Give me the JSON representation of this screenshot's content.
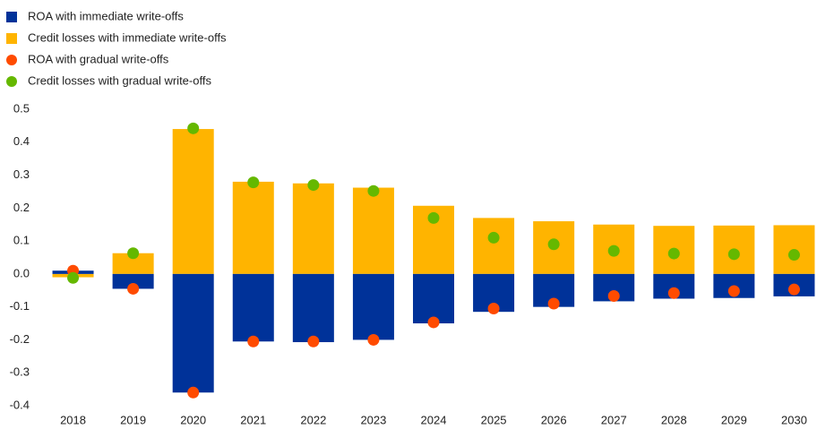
{
  "chart_data": {
    "type": "bar",
    "categories": [
      "2018",
      "2019",
      "2020",
      "2021",
      "2022",
      "2023",
      "2024",
      "2025",
      "2026",
      "2027",
      "2028",
      "2029",
      "2030"
    ],
    "series": [
      {
        "name": "ROA with immediate write-offs",
        "color": "#003299",
        "kind": "bar",
        "values": [
          0.01,
          -0.045,
          -0.36,
          -0.205,
          -0.207,
          -0.2,
          -0.15,
          -0.115,
          -0.1,
          -0.083,
          -0.075,
          -0.073,
          -0.068
        ]
      },
      {
        "name": "Credit losses with immediate write-offs",
        "color": "#ffb400",
        "kind": "bar",
        "values": [
          -0.01,
          0.063,
          0.44,
          0.28,
          0.275,
          0.262,
          0.207,
          0.17,
          0.16,
          0.15,
          0.146,
          0.147,
          0.148
        ]
      },
      {
        "name": "ROA with gradual write-offs",
        "color": "#ff4b00",
        "kind": "dot",
        "values": [
          0.01,
          -0.045,
          -0.36,
          -0.205,
          -0.205,
          -0.2,
          -0.147,
          -0.105,
          -0.09,
          -0.067,
          -0.058,
          -0.052,
          -0.047
        ]
      },
      {
        "name": "Credit losses with gradual write-offs",
        "color": "#65b800",
        "kind": "dot",
        "values": [
          -0.012,
          0.063,
          0.442,
          0.278,
          0.27,
          0.252,
          0.17,
          0.11,
          0.09,
          0.07,
          0.062,
          0.06,
          0.058
        ]
      }
    ],
    "ylim": [
      -0.4,
      0.5
    ],
    "yticks": [
      -0.4,
      -0.3,
      -0.2,
      -0.1,
      {
        "value": 0,
        "label": "0.0"
      },
      0.1,
      0.2,
      0.3,
      0.4,
      0.5
    ]
  }
}
